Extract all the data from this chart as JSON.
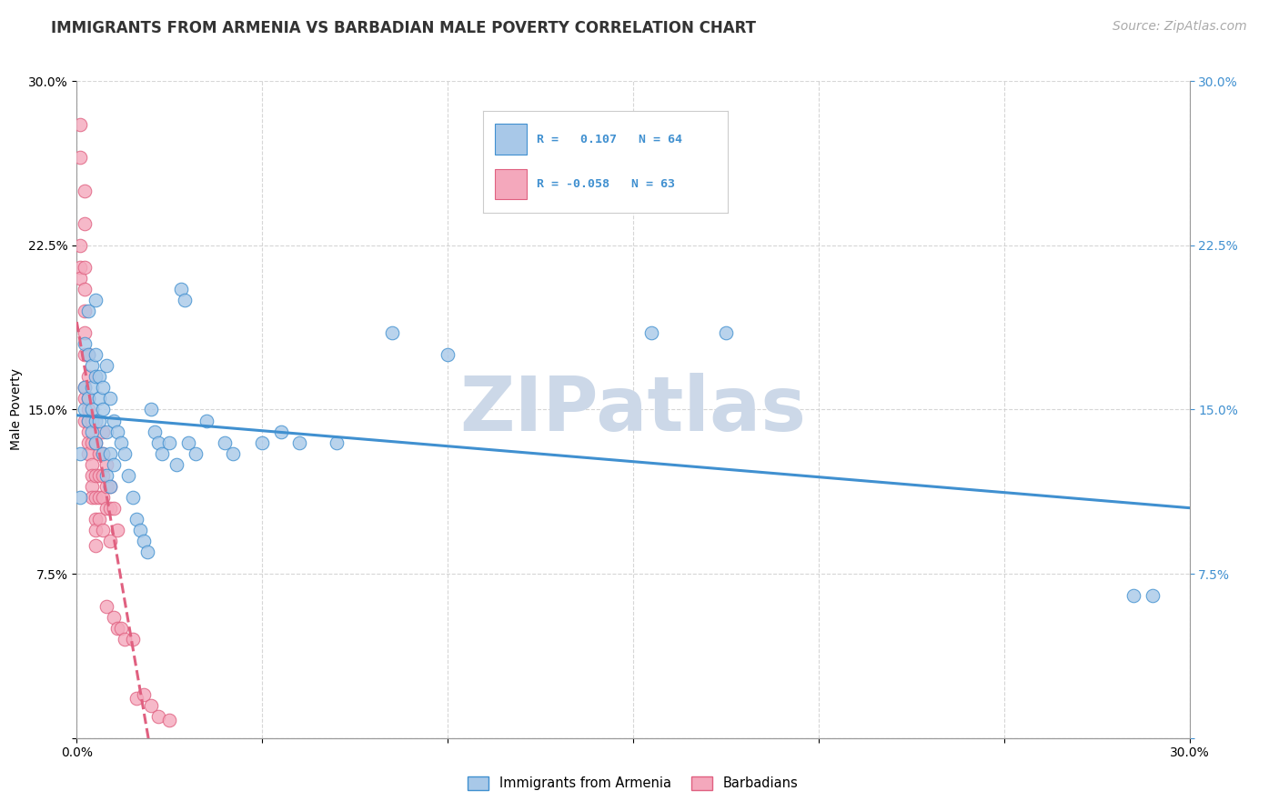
{
  "title": "IMMIGRANTS FROM ARMENIA VS BARBADIAN MALE POVERTY CORRELATION CHART",
  "source": "Source: ZipAtlas.com",
  "ylabel": "Male Poverty",
  "xlim": [
    0.0,
    0.3
  ],
  "ylim": [
    0.0,
    0.3
  ],
  "legend_r1": "R =   0.107   N = 64",
  "legend_r2": "R = -0.058   N = 63",
  "legend_label1": "Immigrants from Armenia",
  "legend_label2": "Barbadians",
  "watermark": "ZIPatlas",
  "blue_scatter": [
    [
      0.001,
      0.13
    ],
    [
      0.001,
      0.11
    ],
    [
      0.002,
      0.18
    ],
    [
      0.002,
      0.16
    ],
    [
      0.002,
      0.15
    ],
    [
      0.003,
      0.195
    ],
    [
      0.003,
      0.175
    ],
    [
      0.003,
      0.155
    ],
    [
      0.003,
      0.145
    ],
    [
      0.004,
      0.17
    ],
    [
      0.004,
      0.16
    ],
    [
      0.004,
      0.15
    ],
    [
      0.004,
      0.14
    ],
    [
      0.005,
      0.2
    ],
    [
      0.005,
      0.175
    ],
    [
      0.005,
      0.165
    ],
    [
      0.005,
      0.145
    ],
    [
      0.005,
      0.135
    ],
    [
      0.006,
      0.165
    ],
    [
      0.006,
      0.155
    ],
    [
      0.006,
      0.145
    ],
    [
      0.007,
      0.16
    ],
    [
      0.007,
      0.15
    ],
    [
      0.007,
      0.13
    ],
    [
      0.008,
      0.17
    ],
    [
      0.008,
      0.14
    ],
    [
      0.008,
      0.12
    ],
    [
      0.009,
      0.155
    ],
    [
      0.009,
      0.13
    ],
    [
      0.009,
      0.115
    ],
    [
      0.01,
      0.145
    ],
    [
      0.01,
      0.125
    ],
    [
      0.011,
      0.14
    ],
    [
      0.012,
      0.135
    ],
    [
      0.013,
      0.13
    ],
    [
      0.014,
      0.12
    ],
    [
      0.015,
      0.11
    ],
    [
      0.016,
      0.1
    ],
    [
      0.017,
      0.095
    ],
    [
      0.018,
      0.09
    ],
    [
      0.019,
      0.085
    ],
    [
      0.02,
      0.15
    ],
    [
      0.021,
      0.14
    ],
    [
      0.022,
      0.135
    ],
    [
      0.023,
      0.13
    ],
    [
      0.025,
      0.135
    ],
    [
      0.027,
      0.125
    ],
    [
      0.028,
      0.205
    ],
    [
      0.029,
      0.2
    ],
    [
      0.03,
      0.135
    ],
    [
      0.032,
      0.13
    ],
    [
      0.035,
      0.145
    ],
    [
      0.04,
      0.135
    ],
    [
      0.042,
      0.13
    ],
    [
      0.05,
      0.135
    ],
    [
      0.055,
      0.14
    ],
    [
      0.06,
      0.135
    ],
    [
      0.07,
      0.135
    ],
    [
      0.085,
      0.185
    ],
    [
      0.1,
      0.175
    ],
    [
      0.155,
      0.185
    ],
    [
      0.175,
      0.185
    ],
    [
      0.285,
      0.065
    ],
    [
      0.29,
      0.065
    ]
  ],
  "pink_scatter": [
    [
      0.001,
      0.28
    ],
    [
      0.001,
      0.265
    ],
    [
      0.001,
      0.225
    ],
    [
      0.001,
      0.215
    ],
    [
      0.001,
      0.21
    ],
    [
      0.002,
      0.25
    ],
    [
      0.002,
      0.235
    ],
    [
      0.002,
      0.215
    ],
    [
      0.002,
      0.205
    ],
    [
      0.002,
      0.195
    ],
    [
      0.002,
      0.185
    ],
    [
      0.002,
      0.175
    ],
    [
      0.002,
      0.16
    ],
    [
      0.002,
      0.155
    ],
    [
      0.002,
      0.145
    ],
    [
      0.003,
      0.175
    ],
    [
      0.003,
      0.165
    ],
    [
      0.003,
      0.155
    ],
    [
      0.003,
      0.15
    ],
    [
      0.003,
      0.145
    ],
    [
      0.003,
      0.14
    ],
    [
      0.003,
      0.135
    ],
    [
      0.003,
      0.13
    ],
    [
      0.004,
      0.145
    ],
    [
      0.004,
      0.135
    ],
    [
      0.004,
      0.125
    ],
    [
      0.004,
      0.12
    ],
    [
      0.004,
      0.115
    ],
    [
      0.004,
      0.11
    ],
    [
      0.005,
      0.135
    ],
    [
      0.005,
      0.12
    ],
    [
      0.005,
      0.11
    ],
    [
      0.005,
      0.1
    ],
    [
      0.005,
      0.095
    ],
    [
      0.005,
      0.088
    ],
    [
      0.006,
      0.13
    ],
    [
      0.006,
      0.12
    ],
    [
      0.006,
      0.11
    ],
    [
      0.006,
      0.1
    ],
    [
      0.007,
      0.14
    ],
    [
      0.007,
      0.13
    ],
    [
      0.007,
      0.12
    ],
    [
      0.007,
      0.11
    ],
    [
      0.007,
      0.095
    ],
    [
      0.008,
      0.125
    ],
    [
      0.008,
      0.115
    ],
    [
      0.008,
      0.105
    ],
    [
      0.008,
      0.06
    ],
    [
      0.009,
      0.115
    ],
    [
      0.009,
      0.105
    ],
    [
      0.009,
      0.09
    ],
    [
      0.01,
      0.105
    ],
    [
      0.01,
      0.055
    ],
    [
      0.011,
      0.095
    ],
    [
      0.011,
      0.05
    ],
    [
      0.012,
      0.05
    ],
    [
      0.013,
      0.045
    ],
    [
      0.015,
      0.045
    ],
    [
      0.016,
      0.018
    ],
    [
      0.018,
      0.02
    ],
    [
      0.02,
      0.015
    ],
    [
      0.022,
      0.01
    ],
    [
      0.025,
      0.008
    ]
  ],
  "blue_color": "#a8c8e8",
  "pink_color": "#f4a8bc",
  "blue_line_color": "#4090d0",
  "pink_line_color": "#e06080",
  "grid_color": "#cccccc",
  "background_color": "#ffffff",
  "title_fontsize": 12,
  "axis_label_fontsize": 10,
  "tick_fontsize": 10,
  "source_fontsize": 10,
  "watermark_color": "#ccd8e8",
  "watermark_fontsize": 60
}
